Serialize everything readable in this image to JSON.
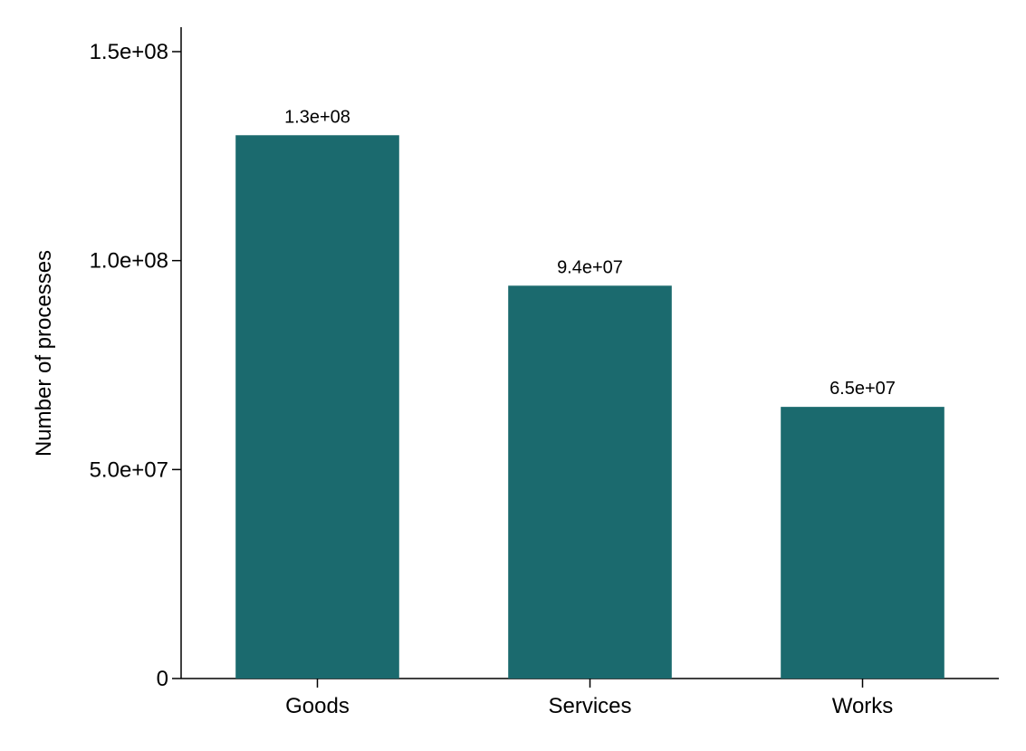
{
  "chart_data": {
    "type": "bar",
    "title": "",
    "xlabel": "",
    "ylabel": "Number of processes",
    "categories": [
      "Goods",
      "Services",
      "Works"
    ],
    "values": [
      130000000,
      94000000,
      65000000
    ],
    "data_labels": [
      "1.3e+08",
      "9.4e+07",
      "6.5e+07"
    ],
    "ylim": [
      0,
      150000000
    ],
    "yticks": [
      0,
      50000000,
      100000000,
      150000000
    ],
    "ytick_labels": [
      "0",
      "5.0e+07",
      "1.0e+08",
      "1.5e+08"
    ],
    "grid": false,
    "legend": "none",
    "colors": {
      "bar": "#1b6a6e",
      "axis": "#000000",
      "text": "#000000"
    }
  }
}
